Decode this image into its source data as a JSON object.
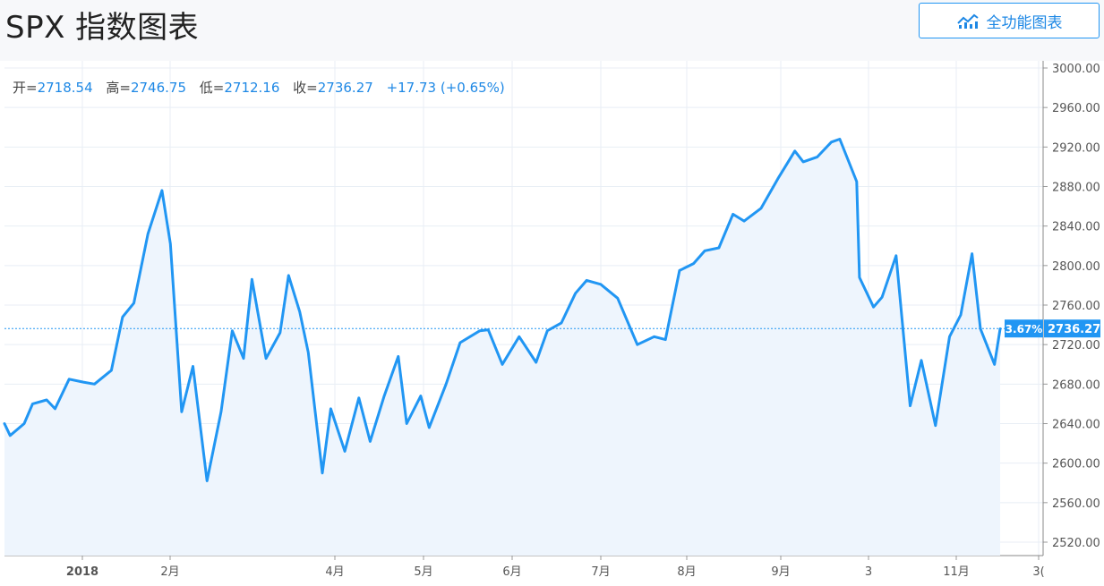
{
  "header": {
    "title": "SPX 指数图表",
    "full_chart_label": "全功能图表"
  },
  "ohlc": {
    "open_label": "开=",
    "open": "2718.54",
    "high_label": "高=",
    "high": "2746.75",
    "low_label": "低=",
    "low": "2712.16",
    "close_label": "收=",
    "close": "2736.27",
    "change": "+17.73 (+0.65%)"
  },
  "colors": {
    "line": "#2196f3",
    "area": "#eef5fd",
    "grid": "#e8eef5",
    "axis_text": "#555555",
    "label_bg": "#2196f3"
  },
  "chart_data": {
    "type": "area",
    "title": "",
    "xlabel": "",
    "ylabel": "",
    "ylim": [
      2505,
      3010
    ],
    "y_ticks": [
      "3000.00",
      "2960.00",
      "2920.00",
      "2880.00",
      "2840.00",
      "2800.00",
      "2760.00",
      "2720.00",
      "2680.00",
      "2640.00",
      "2600.00",
      "2560.00",
      "2520.00"
    ],
    "x_ticks": [
      "2018",
      "2月",
      "4月",
      "5月",
      "6月",
      "7月",
      "8月",
      "9月",
      "3",
      "11月",
      "3("
    ],
    "last_value_label": "2736.27",
    "change_pct_label": "3.67%",
    "grid": true,
    "x": [
      "2017-12-11",
      "2017-12-13",
      "2017-12-18",
      "2017-12-21",
      "2017-12-26",
      "2017-12-29",
      "2018-01-03",
      "2018-01-08",
      "2018-01-12",
      "2018-01-18",
      "2018-01-22",
      "2018-01-26",
      "2018-01-31",
      "2018-02-05",
      "2018-02-08",
      "2018-02-12",
      "2018-02-16",
      "2018-02-21",
      "2018-02-26",
      "2018-03-02",
      "2018-03-06",
      "2018-03-09",
      "2018-03-14",
      "2018-03-19",
      "2018-03-22",
      "2018-03-26",
      "2018-03-29",
      "2018-04-03",
      "2018-04-06",
      "2018-04-11",
      "2018-04-16",
      "2018-04-20",
      "2018-04-25",
      "2018-04-30",
      "2018-05-03",
      "2018-05-08",
      "2018-05-11",
      "2018-05-17",
      "2018-05-22",
      "2018-05-29",
      "2018-06-01",
      "2018-06-06",
      "2018-06-12",
      "2018-06-18",
      "2018-06-22",
      "2018-06-27",
      "2018-07-02",
      "2018-07-06",
      "2018-07-11",
      "2018-07-17",
      "2018-07-24",
      "2018-07-30",
      "2018-08-03",
      "2018-08-08",
      "2018-08-13",
      "2018-08-17",
      "2018-08-22",
      "2018-08-27",
      "2018-08-31",
      "2018-09-06",
      "2018-09-12",
      "2018-09-18",
      "2018-09-21",
      "2018-09-26",
      "2018-10-01",
      "2018-10-04",
      "2018-10-10",
      "2018-10-11",
      "2018-10-16",
      "2018-10-19",
      "2018-10-24",
      "2018-10-29",
      "2018-11-02",
      "2018-11-07",
      "2018-11-12",
      "2018-11-16",
      "2018-11-20",
      "2018-11-23",
      "2018-11-28",
      "2018-11-30"
    ],
    "series": [
      {
        "values": [
          2640,
          2628,
          2640,
          2660,
          2664,
          2655,
          2685,
          2682,
          2680,
          2694,
          2748,
          2762,
          2832,
          2876,
          2822,
          2652,
          2698,
          2582,
          2652,
          2734,
          2706,
          2786,
          2706,
          2732,
          2790,
          2753,
          2712,
          2590,
          2655,
          2612,
          2666,
          2622,
          2668,
          2708,
          2640,
          2668,
          2636,
          2680,
          2722,
          2734,
          2735,
          2700,
          2728,
          2702,
          2734,
          2742,
          2772,
          2785,
          2781,
          2767,
          2720,
          2728,
          2725,
          2795,
          2802,
          2815,
          2818,
          2852,
          2845,
          2858,
          2888,
          2916,
          2905,
          2910,
          2925,
          2928,
          2885,
          2788,
          2758,
          2768,
          2810,
          2658,
          2704,
          2638,
          2728,
          2750,
          2812,
          2736,
          2700,
          2736
        ]
      }
    ]
  }
}
